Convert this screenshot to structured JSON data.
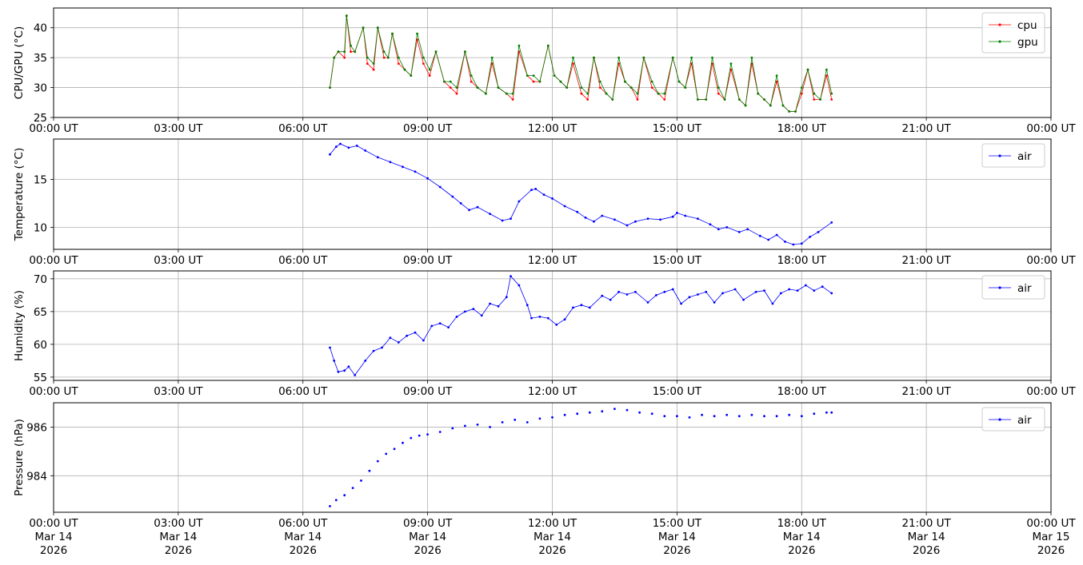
{
  "chart_data": [
    {
      "type": "line",
      "ylabel": "CPU/GPU (°C)",
      "ylim": [
        25,
        43.3
      ],
      "yticks": [
        25,
        30,
        35,
        40
      ],
      "legend": "top-right",
      "grid": true,
      "series": [
        {
          "name": "cpu",
          "color": "#ff0000",
          "x": [
            6.65,
            6.75,
            6.85,
            7.0,
            7.05,
            7.15,
            7.25,
            7.45,
            7.55,
            7.7,
            7.8,
            7.95,
            8.05,
            8.15,
            8.3,
            8.45,
            8.6,
            8.75,
            8.9,
            9.05,
            9.2,
            9.4,
            9.55,
            9.7,
            9.9,
            10.05,
            10.2,
            10.4,
            10.55,
            10.7,
            10.9,
            11.05,
            11.2,
            11.4,
            11.55,
            11.7,
            11.9,
            12.05,
            12.2,
            12.35,
            12.5,
            12.7,
            12.85,
            13.0,
            13.15,
            13.3,
            13.45,
            13.6,
            13.75,
            13.9,
            14.05,
            14.2,
            14.4,
            14.55,
            14.7,
            14.9,
            15.05,
            15.2,
            15.35,
            15.5,
            15.7,
            15.85,
            16.0,
            16.15,
            16.3,
            16.5,
            16.65,
            16.8,
            16.95,
            17.1,
            17.25,
            17.4,
            17.55,
            17.7,
            17.85,
            18.0,
            18.15,
            18.3,
            18.45,
            18.6,
            18.72
          ],
          "y": [
            30,
            35,
            36,
            35,
            42,
            36,
            36,
            40,
            34,
            33,
            40,
            35,
            35,
            39,
            34,
            33,
            32,
            38,
            34,
            32,
            36,
            31,
            30,
            29,
            36,
            31,
            30,
            29,
            34,
            30,
            29,
            28,
            36,
            32,
            31,
            31,
            37,
            32,
            31,
            30,
            34,
            29,
            28,
            35,
            30,
            29,
            28,
            34,
            31,
            30,
            28,
            35,
            30,
            29,
            28,
            35,
            31,
            30,
            34,
            28,
            28,
            34,
            29,
            28,
            33,
            28,
            27,
            34,
            29,
            28,
            27,
            31,
            27,
            26,
            26,
            29,
            33,
            28,
            28,
            32,
            28
          ]
        },
        {
          "name": "gpu",
          "color": "#008000",
          "x": [
            6.65,
            6.75,
            6.85,
            7.0,
            7.05,
            7.15,
            7.25,
            7.45,
            7.55,
            7.7,
            7.8,
            7.95,
            8.05,
            8.15,
            8.3,
            8.45,
            8.6,
            8.75,
            8.9,
            9.05,
            9.2,
            9.4,
            9.55,
            9.7,
            9.9,
            10.05,
            10.2,
            10.4,
            10.55,
            10.7,
            10.9,
            11.05,
            11.2,
            11.4,
            11.55,
            11.7,
            11.9,
            12.05,
            12.2,
            12.35,
            12.5,
            12.7,
            12.85,
            13.0,
            13.15,
            13.3,
            13.45,
            13.6,
            13.75,
            13.9,
            14.05,
            14.2,
            14.4,
            14.55,
            14.7,
            14.9,
            15.05,
            15.2,
            15.35,
            15.5,
            15.7,
            15.85,
            16.0,
            16.15,
            16.3,
            16.5,
            16.65,
            16.8,
            16.95,
            17.1,
            17.25,
            17.4,
            17.55,
            17.7,
            17.85,
            18.0,
            18.15,
            18.3,
            18.45,
            18.6,
            18.72
          ],
          "y": [
            30,
            35,
            36,
            36,
            42,
            37,
            36,
            40,
            35,
            34,
            40,
            36,
            35,
            39,
            35,
            33,
            32,
            39,
            35,
            33,
            36,
            31,
            31,
            30,
            36,
            32,
            30,
            29,
            35,
            30,
            29,
            29,
            37,
            32,
            32,
            31,
            37,
            32,
            31,
            30,
            35,
            30,
            29,
            35,
            31,
            29,
            28,
            35,
            31,
            30,
            29,
            35,
            31,
            29,
            29,
            35,
            31,
            30,
            35,
            28,
            28,
            35,
            30,
            28,
            34,
            28,
            27,
            35,
            29,
            28,
            27,
            32,
            27,
            26,
            26,
            30,
            33,
            29,
            28,
            33,
            29
          ]
        }
      ]
    },
    {
      "type": "line",
      "ylabel": "Temperature (°C)",
      "ylim": [
        7.7,
        19.2
      ],
      "yticks": [
        10,
        15
      ],
      "legend": "top-right",
      "grid": true,
      "series": [
        {
          "name": "air",
          "color": "#0000ff",
          "x": [
            6.65,
            6.8,
            6.9,
            7.1,
            7.3,
            7.5,
            7.8,
            8.1,
            8.4,
            8.7,
            9.0,
            9.3,
            9.6,
            9.8,
            10.0,
            10.2,
            10.5,
            10.8,
            11.0,
            11.2,
            11.5,
            11.6,
            11.8,
            12.0,
            12.3,
            12.6,
            12.8,
            13.0,
            13.2,
            13.5,
            13.8,
            14.0,
            14.3,
            14.6,
            14.9,
            15.0,
            15.2,
            15.5,
            15.8,
            16.0,
            16.2,
            16.5,
            16.7,
            17.0,
            17.2,
            17.4,
            17.6,
            17.8,
            18.0,
            18.2,
            18.4,
            18.72
          ],
          "y": [
            17.6,
            18.4,
            18.7,
            18.3,
            18.5,
            18.0,
            17.3,
            16.8,
            16.3,
            15.8,
            15.1,
            14.2,
            13.2,
            12.5,
            11.8,
            12.1,
            11.4,
            10.7,
            10.9,
            12.7,
            13.9,
            14.0,
            13.4,
            13.0,
            12.2,
            11.6,
            11.0,
            10.6,
            11.2,
            10.8,
            10.2,
            10.6,
            10.9,
            10.8,
            11.1,
            11.5,
            11.2,
            10.9,
            10.3,
            9.8,
            10.0,
            9.5,
            9.8,
            9.1,
            8.7,
            9.2,
            8.5,
            8.2,
            8.3,
            9.0,
            9.5,
            10.5
          ]
        }
      ]
    },
    {
      "type": "line",
      "ylabel": "Humidity (%)",
      "ylim": [
        54.5,
        71.2
      ],
      "yticks": [
        55,
        60,
        65,
        70
      ],
      "legend": "top-right",
      "grid": true,
      "series": [
        {
          "name": "air",
          "color": "#0000ff",
          "x": [
            6.65,
            6.75,
            6.85,
            7.0,
            7.1,
            7.25,
            7.5,
            7.7,
            7.9,
            8.1,
            8.3,
            8.5,
            8.7,
            8.9,
            9.1,
            9.3,
            9.5,
            9.7,
            9.9,
            10.1,
            10.3,
            10.5,
            10.7,
            10.9,
            11.0,
            11.2,
            11.4,
            11.5,
            11.7,
            11.9,
            12.1,
            12.3,
            12.5,
            12.7,
            12.9,
            13.2,
            13.4,
            13.6,
            13.8,
            14.0,
            14.3,
            14.5,
            14.7,
            14.9,
            15.1,
            15.3,
            15.5,
            15.7,
            15.9,
            16.1,
            16.4,
            16.6,
            16.9,
            17.1,
            17.3,
            17.5,
            17.7,
            17.9,
            18.1,
            18.3,
            18.5,
            18.72
          ],
          "y": [
            59.5,
            57.5,
            55.8,
            56.0,
            56.6,
            55.3,
            57.5,
            59.0,
            59.5,
            61.0,
            60.3,
            61.3,
            61.8,
            60.6,
            62.8,
            63.2,
            62.6,
            64.2,
            65.0,
            65.4,
            64.4,
            66.2,
            65.8,
            67.2,
            70.4,
            69.0,
            66.0,
            64.0,
            64.2,
            64.0,
            63.0,
            63.8,
            65.6,
            66.0,
            65.6,
            67.4,
            66.8,
            68.0,
            67.6,
            68.0,
            66.4,
            67.5,
            68.0,
            68.4,
            66.2,
            67.2,
            67.6,
            68.0,
            66.4,
            67.8,
            68.4,
            66.8,
            68.0,
            68.2,
            66.2,
            67.8,
            68.4,
            68.2,
            69.0,
            68.2,
            68.8,
            67.8
          ]
        }
      ]
    },
    {
      "type": "scatter",
      "ylabel": "Pressure (hPa)",
      "ylim": [
        982.5,
        987.0
      ],
      "yticks": [
        984,
        986
      ],
      "legend": "top-right",
      "grid": true,
      "series": [
        {
          "name": "air",
          "color": "#0000ff",
          "x": [
            6.65,
            6.8,
            7.0,
            7.2,
            7.4,
            7.6,
            7.8,
            8.0,
            8.2,
            8.4,
            8.6,
            8.8,
            9.0,
            9.3,
            9.6,
            9.9,
            10.2,
            10.5,
            10.8,
            11.1,
            11.4,
            11.7,
            12.0,
            12.3,
            12.6,
            12.9,
            13.2,
            13.5,
            13.8,
            14.1,
            14.4,
            14.7,
            15.0,
            15.3,
            15.6,
            15.9,
            16.2,
            16.5,
            16.8,
            17.1,
            17.4,
            17.7,
            18.0,
            18.3,
            18.6,
            18.72
          ],
          "y": [
            982.75,
            983.0,
            983.2,
            983.5,
            983.8,
            984.2,
            984.6,
            984.9,
            985.1,
            985.35,
            985.55,
            985.65,
            985.7,
            985.8,
            985.95,
            986.05,
            986.1,
            986.0,
            986.2,
            986.3,
            986.2,
            986.35,
            986.4,
            986.5,
            986.55,
            986.6,
            986.65,
            986.75,
            986.7,
            986.6,
            986.55,
            986.45,
            986.45,
            986.4,
            986.5,
            986.45,
            986.5,
            986.45,
            986.5,
            986.45,
            986.45,
            986.5,
            986.45,
            986.55,
            986.6,
            986.6
          ]
        }
      ]
    }
  ],
  "xaxis": {
    "range_hours": [
      0,
      24
    ],
    "ticks": [
      {
        "h": 0,
        "time": "00:00 UT",
        "date1": "Mar 14",
        "date2": "2026"
      },
      {
        "h": 3,
        "time": "03:00 UT",
        "date1": "Mar 14",
        "date2": "2026"
      },
      {
        "h": 6,
        "time": "06:00 UT",
        "date1": "Mar 14",
        "date2": "2026"
      },
      {
        "h": 9,
        "time": "09:00 UT",
        "date1": "Mar 14",
        "date2": "2026"
      },
      {
        "h": 12,
        "time": "12:00 UT",
        "date1": "Mar 14",
        "date2": "2026"
      },
      {
        "h": 15,
        "time": "15:00 UT",
        "date1": "Mar 14",
        "date2": "2026"
      },
      {
        "h": 18,
        "time": "18:00 UT",
        "date1": "Mar 14",
        "date2": "2026"
      },
      {
        "h": 21,
        "time": "21:00 UT",
        "date1": "Mar 14",
        "date2": "2026"
      },
      {
        "h": 24,
        "time": "00:00 UT",
        "date1": "Mar 15",
        "date2": "2026"
      }
    ]
  }
}
